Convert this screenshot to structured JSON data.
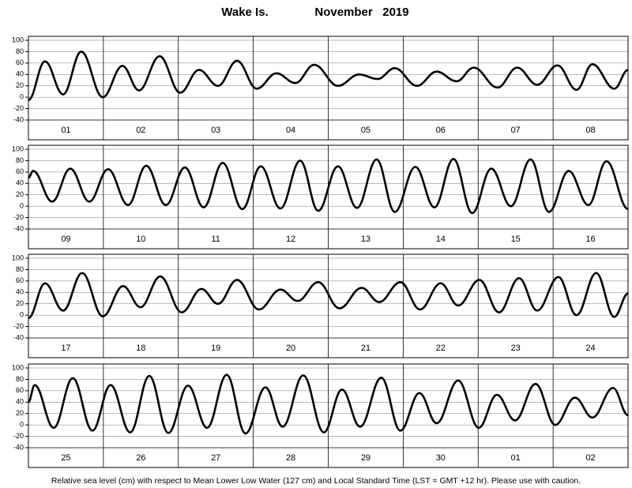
{
  "title": "Wake Is.",
  "subtitle": "November   2019",
  "note": "Relative sea level (cm) with respect to Mean Lower Low Water (127 cm) and Local Standard Time (LST = GMT +12 hr). Please use with caution.",
  "chart_data": [
    {
      "type": "line",
      "categories": [
        "01",
        "02",
        "03",
        "04",
        "05",
        "06",
        "07",
        "08"
      ],
      "color": "#000000",
      "xlim": [
        0,
        192
      ],
      "xticks": [
        0,
        24,
        48,
        72,
        96,
        120,
        144,
        168,
        192
      ],
      "ylim": [
        -40,
        100
      ],
      "yticks": [
        -40,
        -20,
        0,
        20,
        40,
        60,
        80,
        100
      ],
      "grid": true,
      "x": [
        0,
        5.3,
        11.1,
        16.9,
        23.8,
        30.1,
        35.4,
        42,
        48.6,
        54.6,
        60.7,
        66.8,
        73.1,
        79.4,
        85.5,
        91.5,
        99.1,
        105.9,
        111.8,
        117.3,
        124.4,
        130.7,
        137.1,
        142.6,
        150.2,
        156.5,
        162.9,
        169.4,
        175.5,
        180.6,
        187.6,
        192
      ],
      "values": [
        -5,
        63,
        5,
        80,
        0,
        55,
        12,
        72,
        8,
        48,
        20,
        64,
        15,
        42,
        25,
        57,
        20,
        40,
        32,
        51,
        20,
        45,
        28,
        52,
        17,
        52,
        22,
        56,
        13,
        58,
        15,
        48
      ]
    },
    {
      "type": "line",
      "categories": [
        "09",
        "10",
        "11",
        "12",
        "13",
        "14",
        "15",
        "16"
      ],
      "color": "#000000",
      "xlim": [
        0,
        192
      ],
      "xticks": [
        0,
        24,
        48,
        72,
        96,
        120,
        144,
        168,
        192
      ],
      "ylim": [
        -40,
        100
      ],
      "yticks": [
        -40,
        -20,
        0,
        20,
        40,
        60,
        80,
        100
      ],
      "grid": true,
      "x": [
        0,
        1.5,
        7.6,
        13.4,
        19.5,
        25.5,
        31.9,
        37.7,
        44,
        50.1,
        56.1,
        62.2,
        68.5,
        74.4,
        80.7,
        87,
        92.8,
        99.1,
        105.2,
        111.5,
        117.3,
        123.9,
        130,
        136.1,
        142.1,
        148.2,
        154.5,
        160.8,
        166.7,
        173,
        179.3,
        185.1,
        192
      ],
      "values": [
        50,
        62,
        8,
        66,
        8,
        65,
        2,
        71,
        2,
        68,
        -2,
        76,
        -5,
        70,
        -4,
        80,
        -8,
        70,
        -3,
        82,
        -10,
        69,
        -2,
        83,
        -12,
        66,
        0,
        82,
        -10,
        62,
        2,
        79,
        -5
      ]
    },
    {
      "type": "line",
      "categories": [
        "17",
        "18",
        "19",
        "20",
        "21",
        "22",
        "23",
        "24"
      ],
      "color": "#000000",
      "xlim": [
        0,
        192
      ],
      "xticks": [
        0,
        24,
        48,
        72,
        96,
        120,
        144,
        168,
        192
      ],
      "ylim": [
        -40,
        100
      ],
      "yticks": [
        -40,
        -20,
        0,
        20,
        40,
        60,
        80,
        100
      ],
      "grid": true,
      "x": [
        0,
        5.3,
        11.1,
        17.2,
        23.8,
        30.3,
        35.9,
        42.2,
        49.1,
        55.4,
        60.7,
        66.8,
        73.8,
        80.7,
        86.2,
        92.8,
        99.6,
        106.7,
        112.3,
        119.1,
        125.4,
        132,
        137.6,
        144.4,
        150.7,
        157.1,
        162.9,
        169.7,
        175.5,
        181.8,
        187.6,
        192
      ],
      "values": [
        -5,
        56,
        8,
        74,
        -2,
        51,
        14,
        68,
        5,
        46,
        20,
        62,
        10,
        45,
        25,
        58,
        12,
        48,
        23,
        58,
        10,
        56,
        17,
        62,
        5,
        65,
        8,
        67,
        0,
        74,
        -3,
        38
      ]
    },
    {
      "type": "line",
      "categories": [
        "25",
        "26",
        "27",
        "28",
        "29",
        "30",
        "01",
        "02"
      ],
      "color": "#000000",
      "xlim": [
        0,
        192
      ],
      "xticks": [
        0,
        24,
        48,
        72,
        96,
        120,
        144,
        168,
        192
      ],
      "ylim": [
        -40,
        100
      ],
      "yticks": [
        -40,
        -20,
        0,
        20,
        40,
        60,
        80,
        100
      ],
      "grid": true,
      "x": [
        0,
        2,
        8.1,
        14.2,
        20.5,
        26.3,
        32.6,
        38.7,
        44.8,
        51.1,
        57.2,
        63.5,
        69.5,
        75.9,
        81.4,
        88,
        94.6,
        100.4,
        106.2,
        113,
        119.1,
        125.2,
        130.7,
        137.6,
        144.2,
        150,
        155.8,
        162.4,
        168.7,
        175,
        180.6,
        187.2,
        192
      ],
      "values": [
        40,
        70,
        -5,
        82,
        -10,
        70,
        -13,
        86,
        -14,
        69,
        -5,
        88,
        -15,
        66,
        -3,
        87,
        -13,
        62,
        -3,
        83,
        -10,
        56,
        3,
        78,
        -5,
        53,
        8,
        72,
        0,
        48,
        13,
        65,
        17
      ]
    }
  ]
}
